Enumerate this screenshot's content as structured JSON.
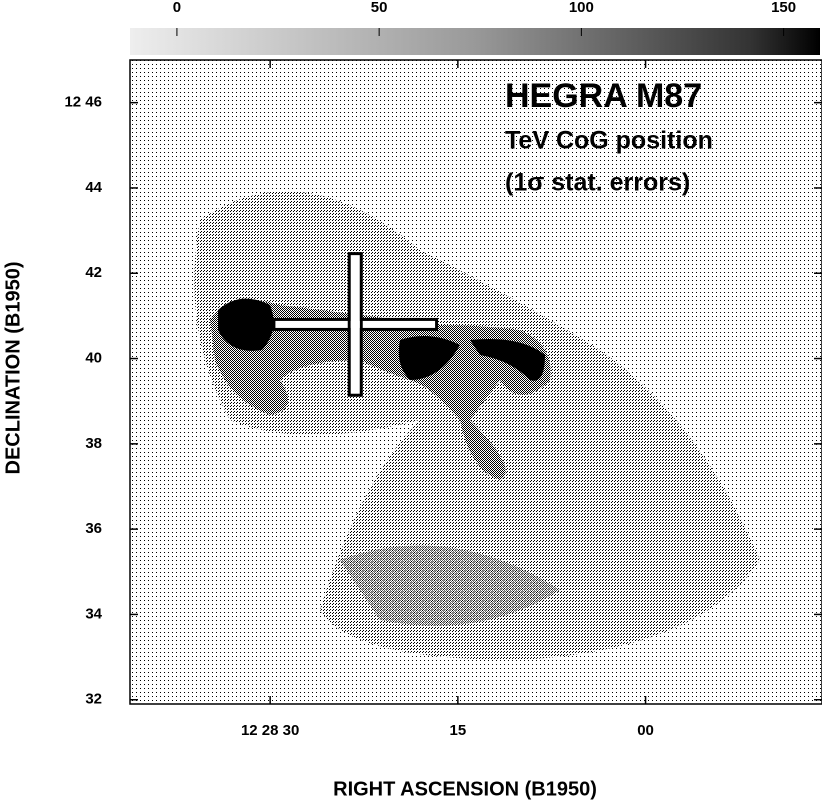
{
  "chart_data": {
    "type": "image",
    "xlabel": "RIGHT ASCENSION (B1950)",
    "ylabel": "DECLINATION (B1950)",
    "annotations": [
      "HEGRA  M87",
      "TeV CoG position",
      "(1σ stat. errors)"
    ],
    "xlim": [
      41.2,
      -14.1
    ],
    "xticks": [
      {
        "value": 30,
        "label": "12 28 30"
      },
      15,
      {
        "value": 0,
        "label": "00"
      }
    ],
    "ylim": [
      31.9,
      47
    ],
    "yticks": [
      {
        "value": 46,
        "label": "12 46"
      },
      44,
      42,
      40,
      38,
      36,
      34,
      32
    ],
    "colorbar": {
      "lim": [
        -11.6,
        159
      ],
      "ticks": [
        0,
        50,
        100,
        150
      ]
    },
    "point": {
      "x": 23.2,
      "y": 40.8,
      "x_err": 6.5,
      "y_err": 1.66
    }
  }
}
